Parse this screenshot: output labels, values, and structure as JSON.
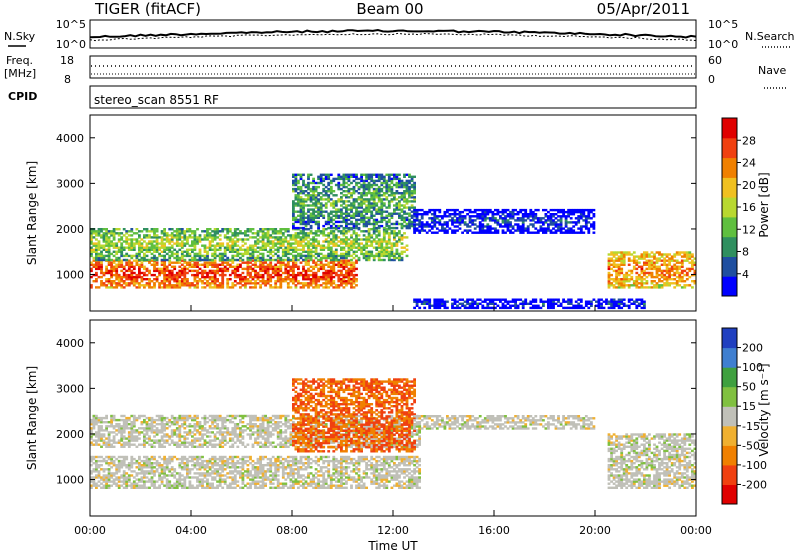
{
  "header": {
    "station": "TIGER (fitACF)",
    "beam": "Beam 00",
    "date": "05/Apr/2011"
  },
  "noise_panel": {
    "left_label": "N.Sky",
    "right_label": "N.Search",
    "tick_top": "10^5",
    "tick_bottom": "10^0"
  },
  "freq_panel": {
    "left_label_line1": "Freq.",
    "left_label_line2": "[MHz]",
    "right_label": "Nave",
    "left_ticks": [
      "18",
      "8"
    ],
    "right_ticks": [
      "60",
      "0"
    ]
  },
  "cpid_panel": {
    "label": "CPID",
    "text": "stereo_scan 8551 RF"
  },
  "colors": {
    "power_scale": [
      "#0000ff",
      "#1f4fa0",
      "#2f8f5f",
      "#5fbf3f",
      "#b8d830",
      "#f0c020",
      "#f08000",
      "#f04010",
      "#e00000"
    ],
    "velocity_scale": [
      "#2040c0",
      "#3f7fd0",
      "#3fa03f",
      "#80c040",
      "#c0c0b8",
      "#f0b030",
      "#f08000",
      "#f04010",
      "#e00000"
    ]
  },
  "chart_data": [
    {
      "type": "heatmap",
      "name": "power",
      "ylabel": "Slant Range [km]",
      "ylim": [
        200,
        4500
      ],
      "yticks": [
        1000,
        2000,
        3000,
        4000
      ],
      "xlim": [
        0,
        24
      ],
      "colorbar": {
        "label": "Power [dB]",
        "ticks": [
          4,
          8,
          12,
          16,
          20,
          24,
          28
        ],
        "range": [
          0,
          32
        ]
      },
      "features": [
        {
          "desc": "strong band",
          "t_start": 0,
          "t_end": 10.5,
          "range_km": [
            700,
            1300
          ],
          "power_db": 28
        },
        {
          "desc": "mid band",
          "t_start": 0,
          "t_end": 12.5,
          "range_km": [
            1300,
            2000
          ],
          "power_db": 16
        },
        {
          "desc": "upper scatter",
          "t_start": 8,
          "t_end": 12.8,
          "range_km": [
            2000,
            3200
          ],
          "power_db": 12
        },
        {
          "desc": "arc",
          "t_start": 12.8,
          "t_end": 20,
          "range_km": [
            1900,
            2400
          ],
          "power_db": 4
        },
        {
          "desc": "low layer",
          "t_start": 12.8,
          "t_end": 22,
          "range_km": [
            250,
            450
          ],
          "power_db": 4
        },
        {
          "desc": "evening echoes",
          "t_start": 20.5,
          "t_end": 24,
          "range_km": [
            700,
            1500
          ],
          "power_db": 24
        }
      ]
    },
    {
      "type": "heatmap",
      "name": "velocity",
      "xlabel": "Time UT",
      "ylabel": "Slant Range [km]",
      "ylim": [
        200,
        4500
      ],
      "yticks": [
        1000,
        2000,
        3000,
        4000
      ],
      "xlim": [
        0,
        24
      ],
      "xticks": [
        "00:00",
        "04:00",
        "08:00",
        "12:00",
        "16:00",
        "20:00",
        "00:00"
      ],
      "colorbar": {
        "label": "Velocity [m s⁻¹]",
        "ticks": [
          "200",
          "100",
          "50",
          "15",
          "-15",
          "-50",
          "-100",
          "-200"
        ]
      },
      "features": [
        {
          "desc": "ground scatter band",
          "t_start": 0,
          "t_end": 13,
          "range_km": [
            800,
            1500
          ],
          "velocity": 0
        },
        {
          "desc": "upper ground scatter",
          "t_start": 0,
          "t_end": 13,
          "range_km": [
            1700,
            2400
          ],
          "velocity": 0
        },
        {
          "desc": "ionospheric echoes",
          "t_start": 8,
          "t_end": 12.8,
          "range_km": [
            1600,
            3200
          ],
          "velocity": -100
        },
        {
          "desc": "arc",
          "t_start": 12.8,
          "t_end": 20,
          "range_km": [
            2100,
            2400
          ],
          "velocity": 0
        },
        {
          "desc": "evening echoes",
          "t_start": 20.5,
          "t_end": 24,
          "range_km": [
            800,
            2000
          ],
          "velocity": 0
        }
      ]
    }
  ]
}
